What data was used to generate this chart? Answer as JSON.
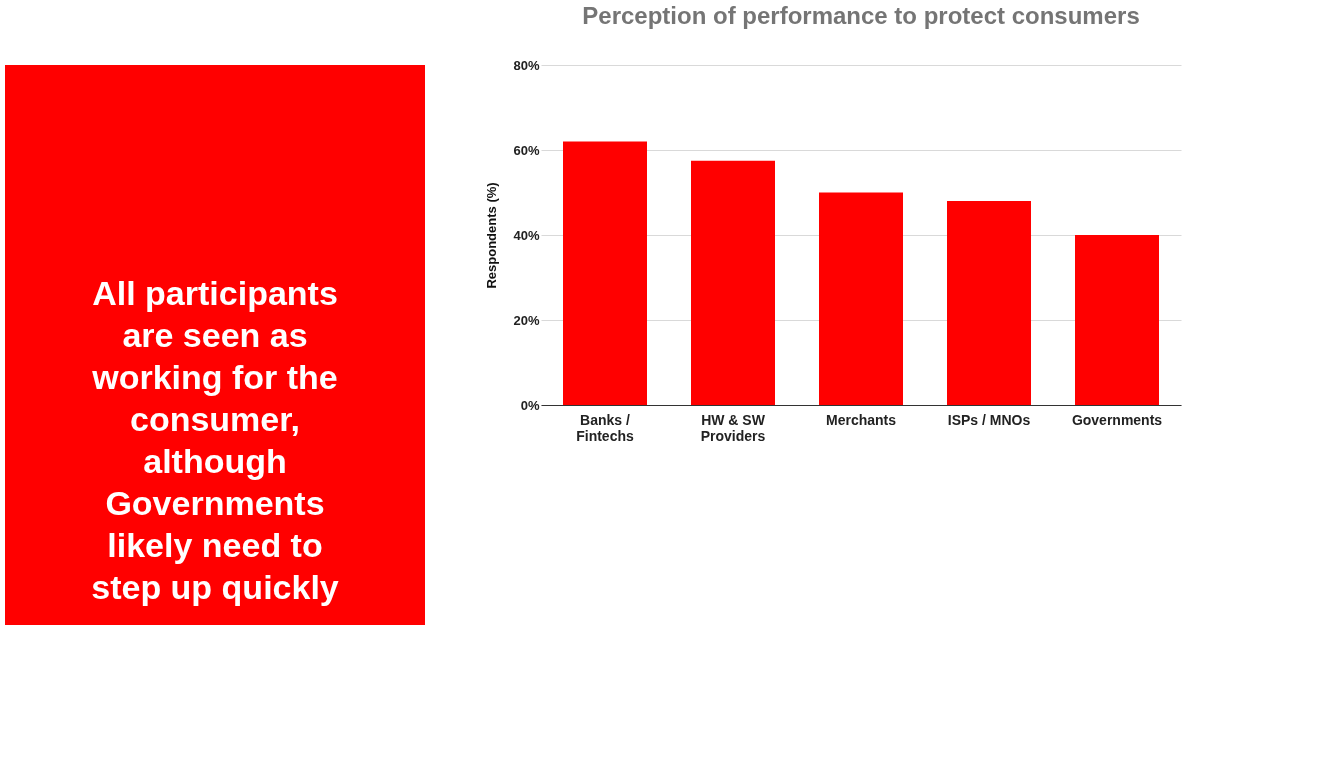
{
  "chart_data": {
    "type": "bar",
    "title": "Perception of performance to protect consumers",
    "ylabel": "Respondents (%)",
    "annotations": [
      "All participants are seen as working for the consumer, although Governments likely need to step up quickly"
    ],
    "categories": [
      "Banks / Fintechs",
      "HW & SW Providers",
      "Merchants",
      "ISPs / MNOs",
      "Governments"
    ],
    "values": [
      62,
      57.5,
      50,
      48,
      40
    ],
    "color": "#ff0000",
    "ylim": [
      0,
      80
    ],
    "yticks": [
      {
        "value": 0,
        "label": "0%"
      },
      {
        "value": 20,
        "label": "20%"
      },
      {
        "value": 40,
        "label": "40%"
      },
      {
        "value": 60,
        "label": "60%"
      },
      {
        "value": 80,
        "label": "80%"
      }
    ],
    "grid": "y"
  }
}
